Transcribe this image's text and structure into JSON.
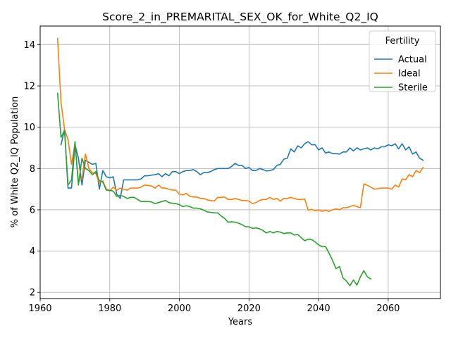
{
  "chart_data": {
    "type": "line",
    "title": "Score_2_in_PREMARITAL_SEX_OK_for_White_Q2_IQ",
    "xlabel": "Years",
    "ylabel": "% of White Q2_IQ Population",
    "xlim": [
      1960,
      2075
    ],
    "ylim": [
      1.7,
      14.9
    ],
    "xticks": [
      1960,
      1980,
      2000,
      2020,
      2040,
      2060
    ],
    "yticks": [
      2,
      4,
      6,
      8,
      10,
      12,
      14
    ],
    "grid": true,
    "legend": {
      "title": "Fertility",
      "placement": "top-right"
    },
    "series": [
      {
        "name": "Actual",
        "color": "#1f77b4",
        "points": [
          [
            1966,
            9.15
          ],
          [
            1967,
            9.9
          ],
          [
            1968,
            7.05
          ],
          [
            1969,
            7.05
          ],
          [
            1970,
            9.15
          ],
          [
            1971,
            8.5
          ],
          [
            1972,
            7.2
          ],
          [
            1973,
            8.4
          ],
          [
            1974,
            8.3
          ],
          [
            1975,
            8.2
          ],
          [
            1976,
            8.25
          ],
          [
            1977,
            7.0
          ],
          [
            1978,
            7.9
          ],
          [
            1979,
            7.6
          ],
          [
            1980,
            7.55
          ],
          [
            1981,
            7.6
          ],
          [
            1982,
            6.75
          ],
          [
            1983,
            6.55
          ],
          [
            1984,
            7.45
          ],
          [
            1985,
            7.45
          ],
          [
            1986,
            7.45
          ],
          [
            1987,
            7.45
          ],
          [
            1988,
            7.45
          ],
          [
            1989,
            7.5
          ],
          [
            1990,
            7.65
          ],
          [
            1991,
            7.65
          ],
          [
            1992,
            7.68
          ],
          [
            1993,
            7.7
          ],
          [
            1994,
            7.75
          ],
          [
            1995,
            7.6
          ],
          [
            1996,
            7.75
          ],
          [
            1997,
            7.65
          ],
          [
            1998,
            7.85
          ],
          [
            1999,
            7.85
          ],
          [
            2000,
            7.75
          ],
          [
            2001,
            7.85
          ],
          [
            2002,
            7.9
          ],
          [
            2003,
            7.9
          ],
          [
            2004,
            7.95
          ],
          [
            2005,
            7.85
          ],
          [
            2006,
            7.7
          ],
          [
            2007,
            7.8
          ],
          [
            2008,
            7.8
          ],
          [
            2009,
            7.85
          ],
          [
            2010,
            7.95
          ],
          [
            2011,
            8.0
          ],
          [
            2012,
            8.0
          ],
          [
            2013,
            8.0
          ],
          [
            2014,
            8.0
          ],
          [
            2015,
            8.1
          ],
          [
            2016,
            8.25
          ],
          [
            2017,
            8.15
          ],
          [
            2018,
            8.15
          ],
          [
            2019,
            8.0
          ],
          [
            2020,
            8.05
          ],
          [
            2021,
            7.9
          ],
          [
            2022,
            7.9
          ],
          [
            2023,
            8.0
          ],
          [
            2024,
            7.95
          ],
          [
            2025,
            7.88
          ],
          [
            2026,
            7.9
          ],
          [
            2027,
            7.95
          ],
          [
            2028,
            8.15
          ],
          [
            2029,
            8.2
          ],
          [
            2030,
            8.45
          ],
          [
            2031,
            8.5
          ],
          [
            2032,
            8.95
          ],
          [
            2033,
            8.8
          ],
          [
            2034,
            9.1
          ],
          [
            2035,
            9.0
          ],
          [
            2036,
            9.2
          ],
          [
            2037,
            9.3
          ],
          [
            2038,
            9.15
          ],
          [
            2039,
            9.15
          ],
          [
            2040,
            8.9
          ],
          [
            2041,
            9.0
          ],
          [
            2042,
            8.75
          ],
          [
            2043,
            8.8
          ],
          [
            2044,
            8.72
          ],
          [
            2045,
            8.72
          ],
          [
            2046,
            8.7
          ],
          [
            2047,
            8.8
          ],
          [
            2048,
            8.8
          ],
          [
            2049,
            9.0
          ],
          [
            2050,
            8.85
          ],
          [
            2051,
            9.0
          ],
          [
            2052,
            8.9
          ],
          [
            2053,
            8.95
          ],
          [
            2054,
            9.0
          ],
          [
            2055,
            8.9
          ],
          [
            2056,
            9.0
          ],
          [
            2057,
            8.95
          ],
          [
            2058,
            9.05
          ],
          [
            2059,
            9.05
          ],
          [
            2060,
            9.15
          ],
          [
            2061,
            9.1
          ],
          [
            2062,
            9.2
          ],
          [
            2063,
            8.95
          ],
          [
            2064,
            9.2
          ],
          [
            2065,
            8.9
          ],
          [
            2066,
            9.05
          ],
          [
            2067,
            8.7
          ],
          [
            2068,
            8.8
          ],
          [
            2069,
            8.5
          ],
          [
            2070,
            8.4
          ]
        ]
      },
      {
        "name": "Ideal",
        "color": "#ff7f0e",
        "points": [
          [
            1965,
            14.3
          ],
          [
            1966,
            11.2
          ],
          [
            1967,
            9.9
          ],
          [
            1968,
            9.4
          ],
          [
            1969,
            8.2
          ],
          [
            1970,
            9.2
          ],
          [
            1971,
            7.4
          ],
          [
            1972,
            7.5
          ],
          [
            1973,
            8.7
          ],
          [
            1974,
            8.0
          ],
          [
            1975,
            7.8
          ],
          [
            1976,
            7.75
          ],
          [
            1977,
            7.3
          ],
          [
            1978,
            7.4
          ],
          [
            1979,
            7.0
          ],
          [
            1980,
            6.9
          ],
          [
            1981,
            7.1
          ],
          [
            1982,
            6.95
          ],
          [
            1983,
            7.05
          ],
          [
            1984,
            7.0
          ],
          [
            1985,
            6.95
          ],
          [
            1986,
            7.05
          ],
          [
            1987,
            7.05
          ],
          [
            1988,
            7.05
          ],
          [
            1989,
            7.1
          ],
          [
            1990,
            7.2
          ],
          [
            1991,
            7.18
          ],
          [
            1992,
            7.15
          ],
          [
            1993,
            7.05
          ],
          [
            1994,
            7.2
          ],
          [
            1995,
            7.05
          ],
          [
            1996,
            7.05
          ],
          [
            1997,
            7.0
          ],
          [
            1998,
            6.95
          ],
          [
            1999,
            6.95
          ],
          [
            2000,
            6.75
          ],
          [
            2001,
            6.72
          ],
          [
            2002,
            6.8
          ],
          [
            2003,
            6.65
          ],
          [
            2004,
            6.62
          ],
          [
            2005,
            6.62
          ],
          [
            2006,
            6.55
          ],
          [
            2007,
            6.55
          ],
          [
            2008,
            6.48
          ],
          [
            2009,
            6.45
          ],
          [
            2010,
            6.42
          ],
          [
            2011,
            6.6
          ],
          [
            2012,
            6.6
          ],
          [
            2013,
            6.62
          ],
          [
            2014,
            6.5
          ],
          [
            2015,
            6.5
          ],
          [
            2016,
            6.55
          ],
          [
            2017,
            6.5
          ],
          [
            2018,
            6.45
          ],
          [
            2019,
            6.45
          ],
          [
            2020,
            6.42
          ],
          [
            2021,
            6.3
          ],
          [
            2022,
            6.35
          ],
          [
            2023,
            6.45
          ],
          [
            2024,
            6.5
          ],
          [
            2025,
            6.5
          ],
          [
            2026,
            6.6
          ],
          [
            2027,
            6.5
          ],
          [
            2028,
            6.55
          ],
          [
            2029,
            6.42
          ],
          [
            2030,
            6.55
          ],
          [
            2031,
            6.55
          ],
          [
            2032,
            6.6
          ],
          [
            2033,
            6.55
          ],
          [
            2034,
            6.5
          ],
          [
            2035,
            6.5
          ],
          [
            2036,
            6.52
          ],
          [
            2037,
            5.98
          ],
          [
            2038,
            6.02
          ],
          [
            2039,
            5.95
          ],
          [
            2040,
            6.0
          ],
          [
            2041,
            5.92
          ],
          [
            2042,
            5.98
          ],
          [
            2043,
            5.92
          ],
          [
            2044,
            6.0
          ],
          [
            2045,
            6.05
          ],
          [
            2046,
            6.0
          ],
          [
            2047,
            6.1
          ],
          [
            2048,
            6.1
          ],
          [
            2049,
            6.15
          ],
          [
            2050,
            6.22
          ],
          [
            2051,
            6.15
          ],
          [
            2052,
            6.1
          ],
          [
            2053,
            7.25
          ],
          [
            2054,
            7.18
          ],
          [
            2055,
            7.1
          ],
          [
            2056,
            7.0
          ],
          [
            2057,
            7.02
          ],
          [
            2058,
            7.05
          ],
          [
            2059,
            7.05
          ],
          [
            2060,
            7.05
          ],
          [
            2061,
            7.0
          ],
          [
            2062,
            7.2
          ],
          [
            2063,
            7.1
          ],
          [
            2064,
            7.5
          ],
          [
            2065,
            7.45
          ],
          [
            2066,
            7.7
          ],
          [
            2067,
            7.6
          ],
          [
            2068,
            7.9
          ],
          [
            2069,
            7.8
          ],
          [
            2070,
            8.05
          ]
        ]
      },
      {
        "name": "Sterile",
        "color": "#2ca02c",
        "points": [
          [
            1965,
            11.65
          ],
          [
            1966,
            9.5
          ],
          [
            1967,
            9.85
          ],
          [
            1968,
            7.2
          ],
          [
            1969,
            7.45
          ],
          [
            1970,
            9.3
          ],
          [
            1971,
            7.2
          ],
          [
            1972,
            8.5
          ],
          [
            1973,
            8.0
          ],
          [
            1974,
            7.9
          ],
          [
            1975,
            7.7
          ],
          [
            1976,
            7.85
          ],
          [
            1977,
            7.4
          ],
          [
            1978,
            7.35
          ],
          [
            1979,
            6.95
          ],
          [
            1980,
            6.95
          ],
          [
            1981,
            6.9
          ],
          [
            1982,
            6.65
          ],
          [
            1983,
            6.7
          ],
          [
            1984,
            6.65
          ],
          [
            1985,
            6.55
          ],
          [
            1986,
            6.6
          ],
          [
            1987,
            6.6
          ],
          [
            1988,
            6.5
          ],
          [
            1989,
            6.4
          ],
          [
            1990,
            6.4
          ],
          [
            1991,
            6.4
          ],
          [
            1992,
            6.38
          ],
          [
            1993,
            6.3
          ],
          [
            1994,
            6.35
          ],
          [
            1995,
            6.4
          ],
          [
            1996,
            6.45
          ],
          [
            1997,
            6.35
          ],
          [
            1998,
            6.32
          ],
          [
            1999,
            6.3
          ],
          [
            2000,
            6.25
          ],
          [
            2001,
            6.15
          ],
          [
            2002,
            6.2
          ],
          [
            2003,
            6.15
          ],
          [
            2004,
            6.08
          ],
          [
            2005,
            6.08
          ],
          [
            2006,
            6.05
          ],
          [
            2007,
            5.98
          ],
          [
            2008,
            5.9
          ],
          [
            2009,
            5.88
          ],
          [
            2010,
            5.85
          ],
          [
            2011,
            5.85
          ],
          [
            2012,
            5.7
          ],
          [
            2013,
            5.58
          ],
          [
            2014,
            5.4
          ],
          [
            2015,
            5.42
          ],
          [
            2016,
            5.4
          ],
          [
            2017,
            5.35
          ],
          [
            2018,
            5.28
          ],
          [
            2019,
            5.18
          ],
          [
            2020,
            5.18
          ],
          [
            2021,
            5.1
          ],
          [
            2022,
            5.12
          ],
          [
            2023,
            5.08
          ],
          [
            2024,
            5.0
          ],
          [
            2025,
            4.88
          ],
          [
            2026,
            4.95
          ],
          [
            2027,
            4.88
          ],
          [
            2028,
            4.95
          ],
          [
            2029,
            4.92
          ],
          [
            2030,
            4.85
          ],
          [
            2031,
            4.88
          ],
          [
            2032,
            4.88
          ],
          [
            2033,
            4.78
          ],
          [
            2034,
            4.8
          ],
          [
            2035,
            4.65
          ],
          [
            2036,
            4.5
          ],
          [
            2037,
            4.58
          ],
          [
            2038,
            4.55
          ],
          [
            2039,
            4.45
          ],
          [
            2040,
            4.3
          ],
          [
            2041,
            4.22
          ],
          [
            2042,
            4.22
          ],
          [
            2043,
            3.9
          ],
          [
            2044,
            3.55
          ],
          [
            2045,
            3.15
          ],
          [
            2046,
            3.25
          ],
          [
            2047,
            2.7
          ],
          [
            2048,
            2.55
          ],
          [
            2049,
            2.32
          ],
          [
            2050,
            2.6
          ],
          [
            2051,
            2.35
          ],
          [
            2052,
            2.75
          ],
          [
            2053,
            3.05
          ],
          [
            2054,
            2.75
          ],
          [
            2055,
            2.65
          ]
        ]
      }
    ]
  }
}
